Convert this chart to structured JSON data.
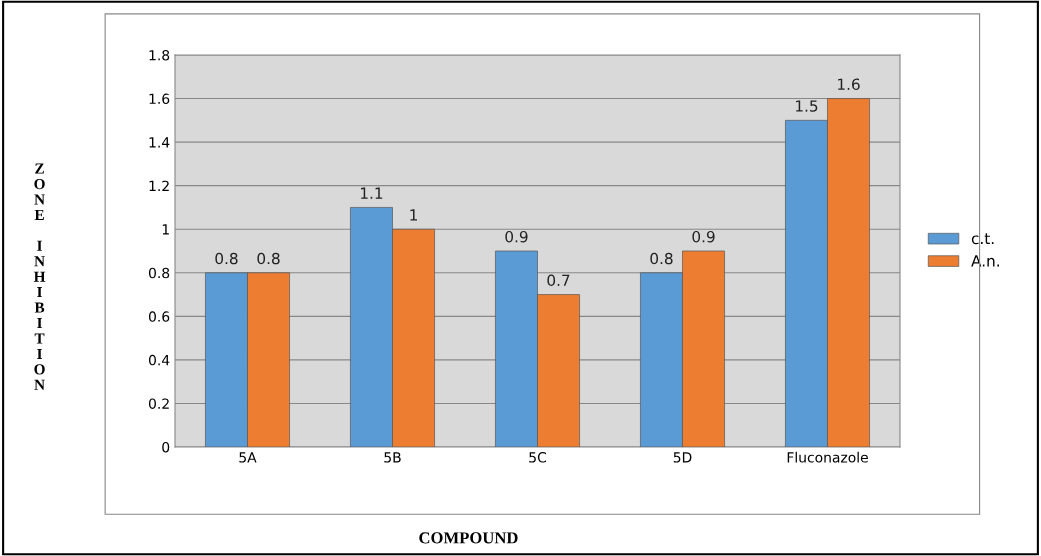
{
  "chart_data": {
    "type": "bar",
    "ylabel": "ZONE INHIBITION",
    "xlabel": "COMPOUND",
    "categories": [
      "5A",
      "5B",
      "5C",
      "5D",
      "Fluconazole"
    ],
    "series": [
      {
        "name": "c.t.",
        "color": "#5b9bd5",
        "values": [
          0.8,
          1.1,
          0.9,
          0.8,
          1.5
        ]
      },
      {
        "name": "A.n.",
        "color": "#ed7d31",
        "values": [
          0.8,
          1,
          0.7,
          0.9,
          1.6
        ]
      }
    ],
    "ylim": [
      0,
      1.8
    ],
    "yticks": [
      0,
      0.2,
      0.4,
      0.6,
      0.8,
      1,
      1.2,
      1.4,
      1.6,
      1.8
    ],
    "grid": "y",
    "legend": "right",
    "data_labels": true
  }
}
